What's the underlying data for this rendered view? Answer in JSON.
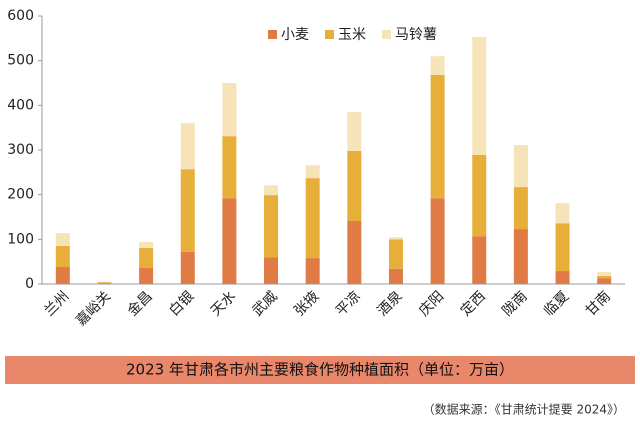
{
  "chart_data": {
    "type": "stacked_bar",
    "caption": "2023 年甘肃各市州主要粮食作物种植面积（单位：万亩）",
    "source": "（数据来源：《甘肃统计提要 2024》）",
    "categories": [
      "兰州",
      "嘉峪关",
      "金昌",
      "白银",
      "天水",
      "武威",
      "张掖",
      "平凉",
      "酒泉",
      "庆阳",
      "定西",
      "陇南",
      "临夏",
      "甘南"
    ],
    "series": [
      {
        "name": "小麦",
        "color": "#e07b45",
        "values": [
          38,
          1,
          36,
          72,
          192,
          60,
          58,
          141,
          34,
          192,
          107,
          123,
          29,
          13
        ]
      },
      {
        "name": "玉米",
        "color": "#e8ae3a",
        "values": [
          47,
          3,
          45,
          185,
          139,
          139,
          179,
          157,
          66,
          276,
          182,
          94,
          107,
          5
        ]
      },
      {
        "name": "马铃薯",
        "color": "#f7e3b8",
        "values": [
          29,
          1,
          13,
          103,
          119,
          22,
          29,
          87,
          5,
          42,
          264,
          94,
          45,
          9
        ]
      }
    ],
    "ylim": [
      0,
      600
    ],
    "yticks": [
      0,
      100,
      200,
      300,
      400,
      500,
      600
    ],
    "legend": "top"
  }
}
